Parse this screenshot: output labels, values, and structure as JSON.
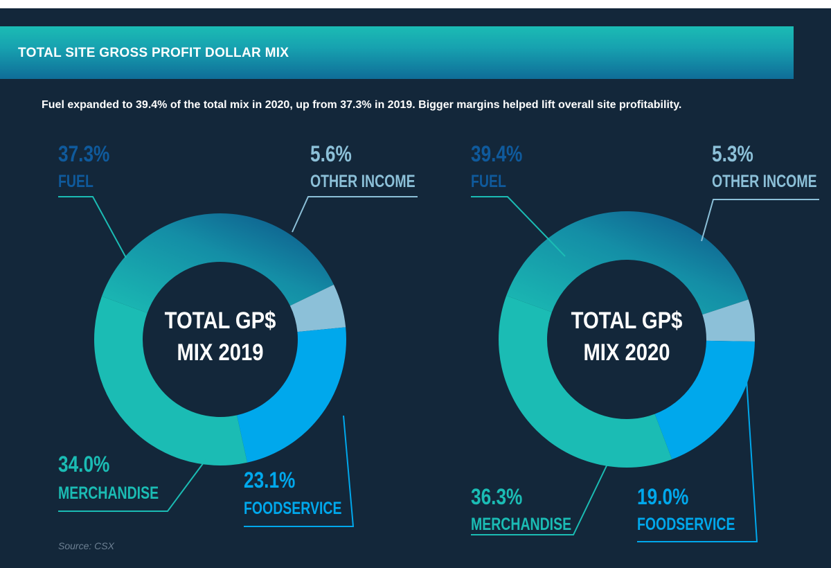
{
  "header": {
    "title": "TOTAL SITE GROSS PROFIT DOLLAR MIX",
    "subtitle": "Fuel expanded to 39.4% of the total mix in 2020, up from 37.3% in 2019. Bigger margins helped lift overall site profitability."
  },
  "source": "Source: CSX",
  "colors": {
    "background": "#13273a",
    "fuel": "#1bbcb4",
    "fuel_dark": "#0d4f86",
    "other_income": "#8cc0d8",
    "foodservice": "#00a8ec",
    "merchandise": "#1bbcb4",
    "leader_fuel": "#1bbcb4",
    "leader_other": "#8cc0d8",
    "leader_food": "#00a8ec",
    "leader_merch": "#1bbcb4"
  },
  "chart_data": [
    {
      "type": "pie",
      "center_label_line1": "TOTAL GP$",
      "center_label_line2": "MIX 2019",
      "slices": [
        {
          "label": "FUEL",
          "value": 37.3,
          "display": "37.3%"
        },
        {
          "label": "OTHER INCOME",
          "value": 5.6,
          "display": "5.6%"
        },
        {
          "label": "FOODSERVICE",
          "value": 23.1,
          "display": "23.1%"
        },
        {
          "label": "MERCHANDISE",
          "value": 34.0,
          "display": "34.0%"
        }
      ]
    },
    {
      "type": "pie",
      "center_label_line1": "TOTAL GP$",
      "center_label_line2": "MIX 2020",
      "slices": [
        {
          "label": "FUEL",
          "value": 39.4,
          "display": "39.4%"
        },
        {
          "label": "OTHER INCOME",
          "value": 5.3,
          "display": "5.3%"
        },
        {
          "label": "FOODSERVICE",
          "value": 19.0,
          "display": "19.0%"
        },
        {
          "label": "MERCHANDISE",
          "value": 36.3,
          "display": "36.3%"
        }
      ]
    }
  ]
}
